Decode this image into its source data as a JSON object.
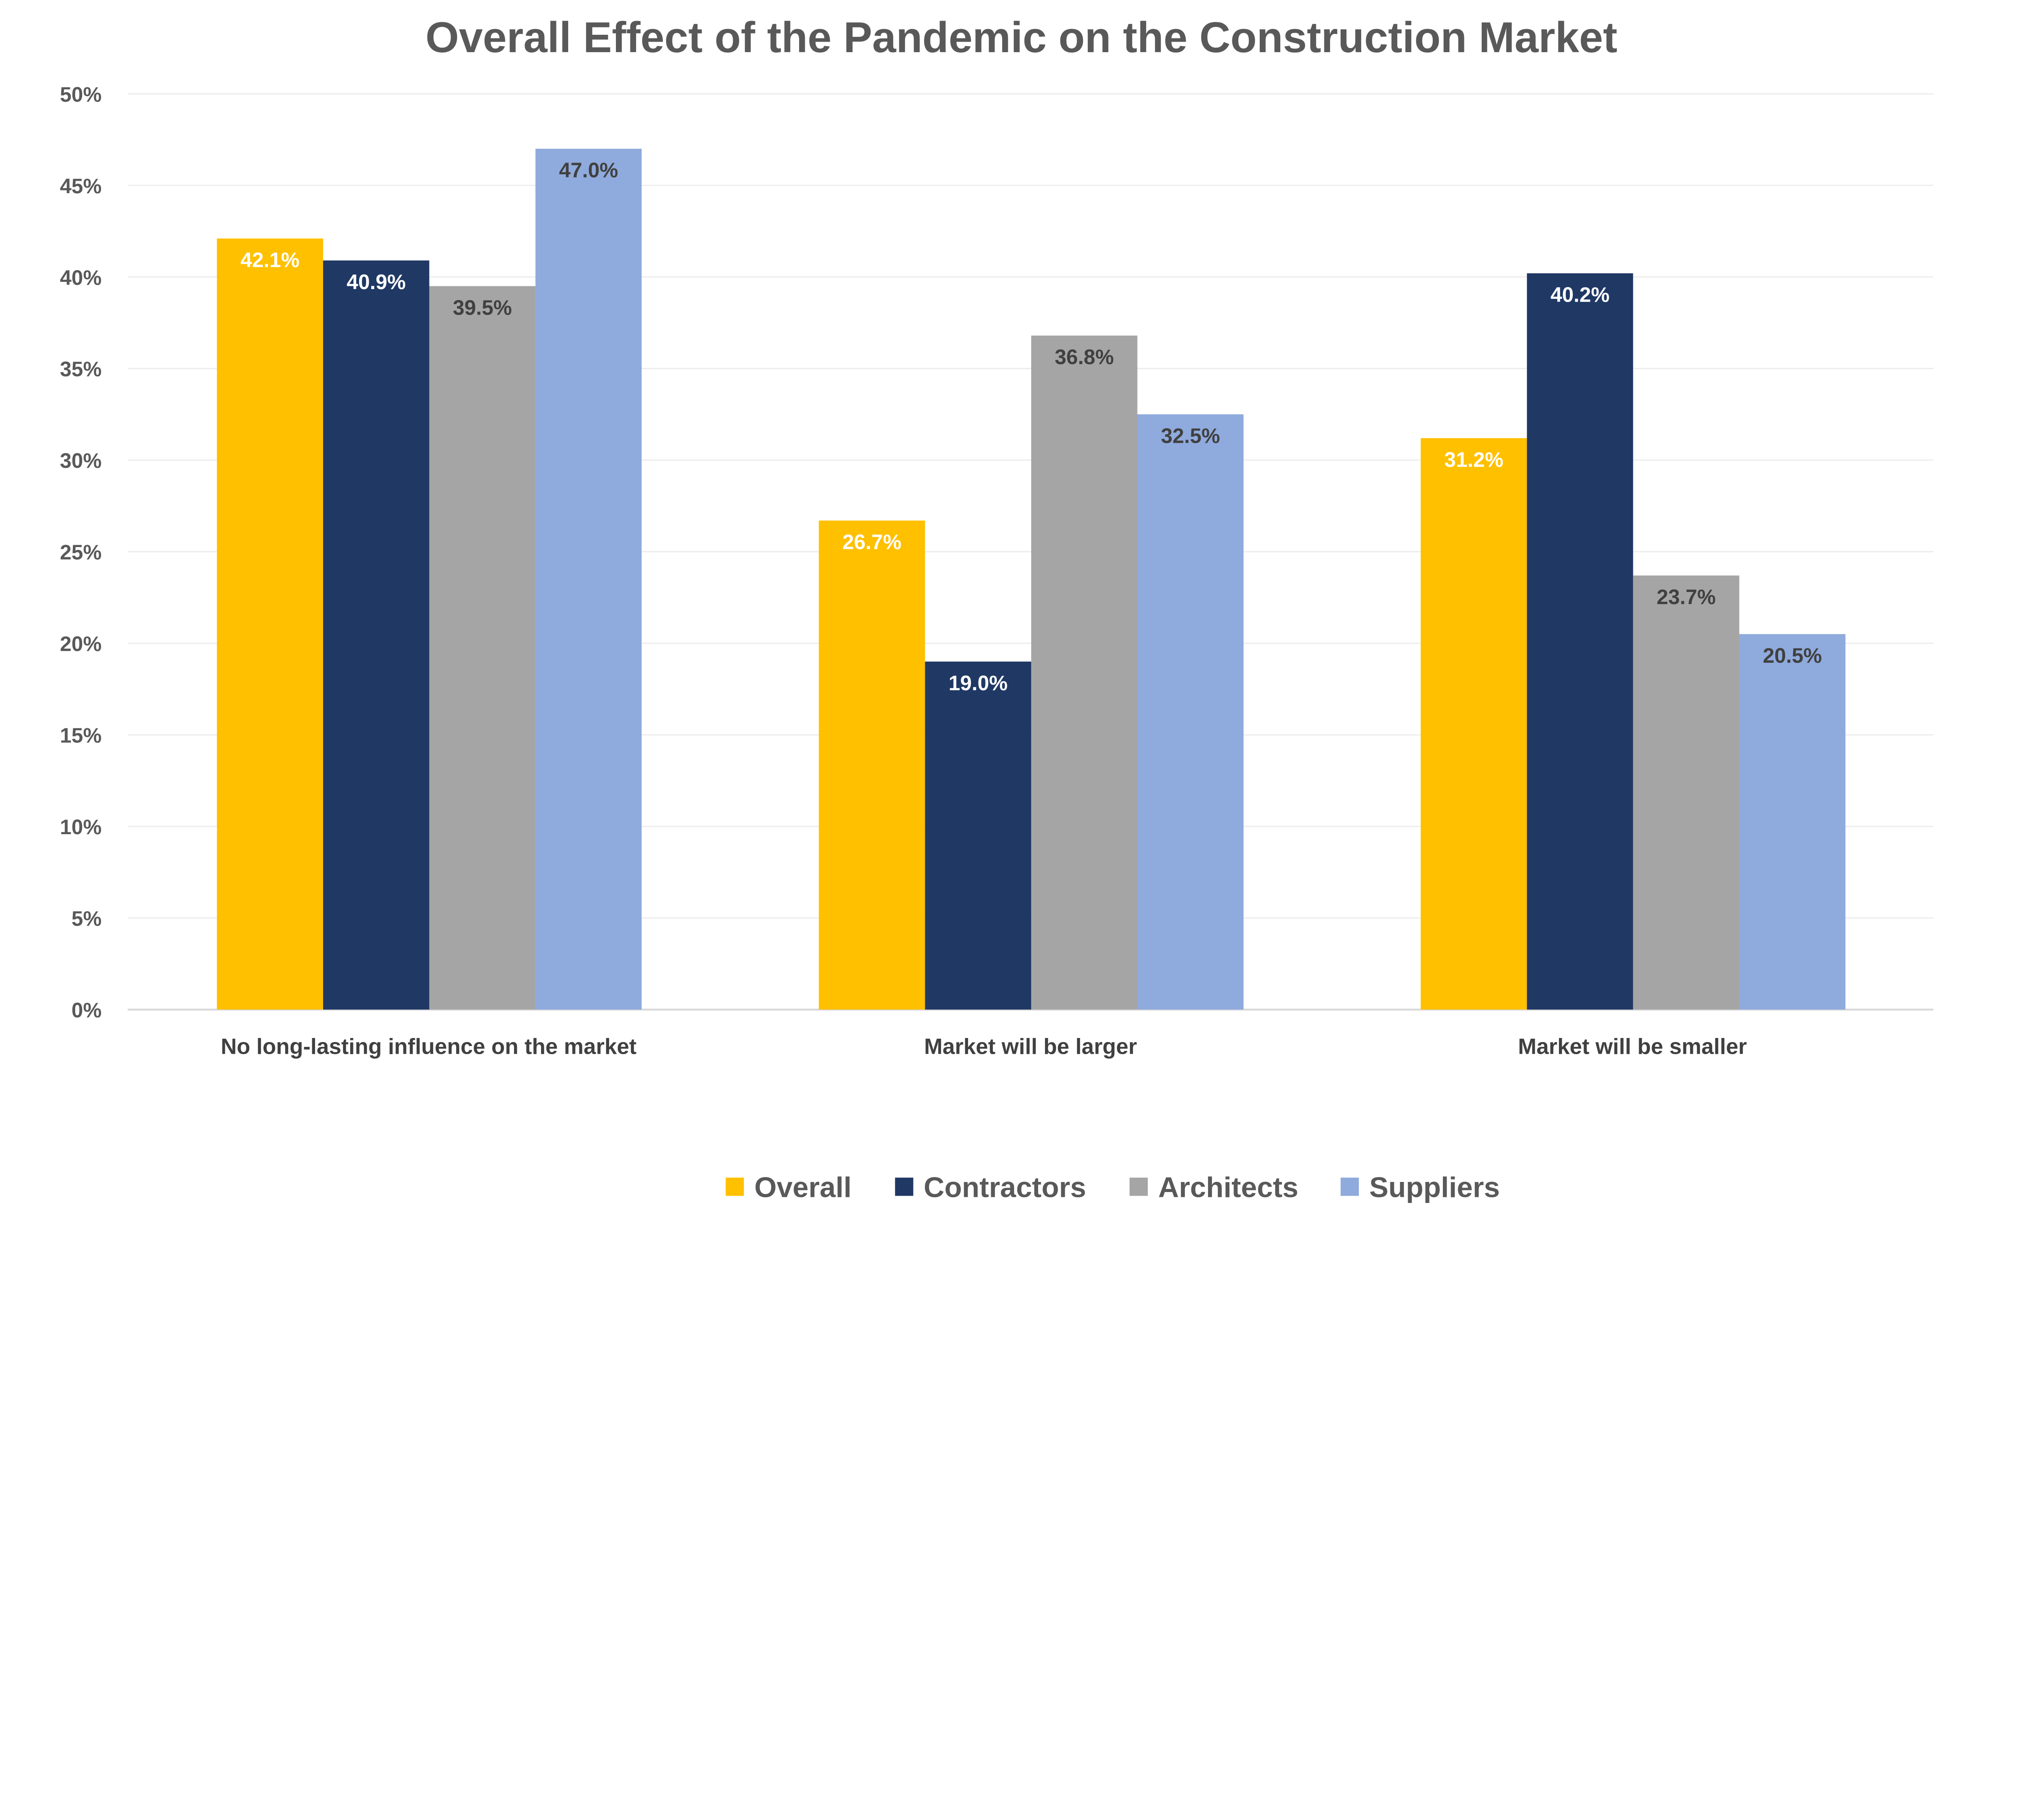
{
  "chart_data": {
    "type": "bar",
    "title": "Overall Effect of the Pandemic on the Construction Market",
    "xlabel": "",
    "ylabel": "",
    "ylim": [
      0,
      50
    ],
    "y_ticks": [
      "0%",
      "5%",
      "10%",
      "15%",
      "20%",
      "25%",
      "30%",
      "35%",
      "40%",
      "45%",
      "50%"
    ],
    "grid": true,
    "legend_position": "bottom",
    "categories": [
      "No long-lasting influence on the market",
      "Market will be larger",
      "Market will be smaller"
    ],
    "series": [
      {
        "name": "Overall",
        "color": "#FFC000",
        "label_color": "#FFFFFF",
        "values": [
          42.1,
          26.7,
          31.2
        ],
        "labels": [
          "42.1%",
          "26.7%",
          "31.2%"
        ]
      },
      {
        "name": "Contractors",
        "color": "#203864",
        "label_color": "#FFFFFF",
        "values": [
          40.9,
          19.0,
          40.2
        ],
        "labels": [
          "40.9%",
          "19.0%",
          "40.2%"
        ]
      },
      {
        "name": "Architects",
        "color": "#A5A5A5",
        "label_color": "#404040",
        "values": [
          39.5,
          36.8,
          23.7
        ],
        "labels": [
          "39.5%",
          "36.8%",
          "23.7%"
        ]
      },
      {
        "name": "Suppliers",
        "color": "#8FAADC",
        "label_color": "#404040",
        "values": [
          47.0,
          32.5,
          20.5
        ],
        "labels": [
          "47.0%",
          "32.5%",
          "20.5%"
        ]
      }
    ]
  }
}
